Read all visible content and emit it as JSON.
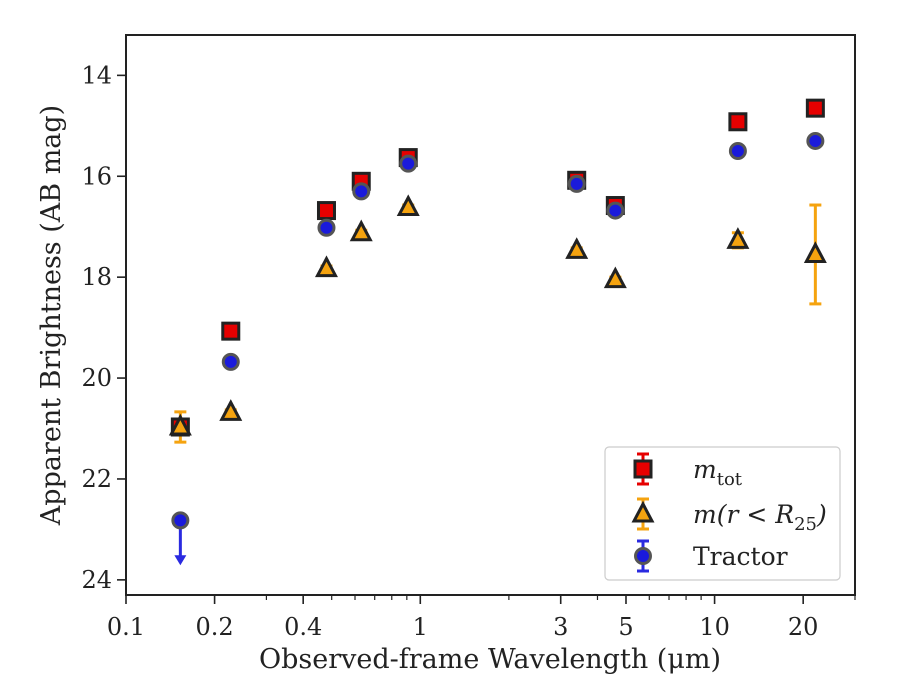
{
  "chart_data": {
    "type": "scatter",
    "xlabel": "Observed-frame Wavelength (μm)",
    "ylabel": "Apparent Brightness (AB mag)",
    "xscale": "log",
    "xlim": [
      0.1,
      30
    ],
    "ylim": [
      24.3,
      13.2
    ],
    "y_inverted": true,
    "xticks": [
      {
        "value": 0.1,
        "label": "0.1"
      },
      {
        "value": 0.2,
        "label": "0.2"
      },
      {
        "value": 0.4,
        "label": "0.4"
      },
      {
        "value": 1,
        "label": "1"
      },
      {
        "value": 3,
        "label": "3"
      },
      {
        "value": 5,
        "label": "5"
      },
      {
        "value": 10,
        "label": "10"
      },
      {
        "value": 20,
        "label": "20"
      }
    ],
    "yticks": [
      {
        "value": 14,
        "label": "14"
      },
      {
        "value": 16,
        "label": "16"
      },
      {
        "value": 18,
        "label": "18"
      },
      {
        "value": 20,
        "label": "20"
      },
      {
        "value": 22,
        "label": "22"
      },
      {
        "value": 24,
        "label": "24"
      }
    ],
    "grid": false,
    "legend_position": "lower-right",
    "series": [
      {
        "name": "m_tot",
        "legend_label": "m",
        "legend_sub": "tot",
        "marker": "square",
        "fill": "#e60000",
        "err_color": "#e60000",
        "points": [
          {
            "x": 0.153,
            "y": 20.97,
            "yerr": 0.08
          },
          {
            "x": 0.227,
            "y": 19.07,
            "yerr": 0.05
          },
          {
            "x": 0.48,
            "y": 16.68,
            "yerr": 0.05
          },
          {
            "x": 0.63,
            "y": 16.1,
            "yerr": 0.05
          },
          {
            "x": 0.91,
            "y": 15.63,
            "yerr": 0.05
          },
          {
            "x": 3.4,
            "y": 16.08,
            "yerr": 0.05
          },
          {
            "x": 4.6,
            "y": 16.58,
            "yerr": 0.05
          },
          {
            "x": 12.0,
            "y": 14.92,
            "yerr": 0.05
          },
          {
            "x": 22.0,
            "y": 14.65,
            "yerr": 0.05
          }
        ]
      },
      {
        "name": "m(r < R_25)",
        "legend_label": "m(r < R",
        "legend_sub": "25",
        "legend_suffix": ")",
        "marker": "triangle",
        "fill": "#f5a30f",
        "err_color": "#f5a30f",
        "points": [
          {
            "x": 0.153,
            "y": 20.97,
            "yerr": 0.3
          },
          {
            "x": 0.227,
            "y": 20.68,
            "yerr": 0.05
          },
          {
            "x": 0.48,
            "y": 17.83,
            "yerr": 0.05
          },
          {
            "x": 0.63,
            "y": 17.12,
            "yerr": 0.05
          },
          {
            "x": 0.91,
            "y": 16.62,
            "yerr": 0.05
          },
          {
            "x": 3.4,
            "y": 17.47,
            "yerr": 0.05
          },
          {
            "x": 4.6,
            "y": 18.05,
            "yerr": 0.05
          },
          {
            "x": 12.0,
            "y": 17.27,
            "yerr": 0.15
          },
          {
            "x": 22.0,
            "y": 17.55,
            "yerr": 0.98
          }
        ]
      },
      {
        "name": "Tractor",
        "legend_label": "Tractor",
        "marker": "circle",
        "fill": "#1a1adb",
        "err_color": "#2a2ae0",
        "points": [
          {
            "x": 0.153,
            "y": 22.82,
            "upper_limit": true
          },
          {
            "x": 0.227,
            "y": 19.68,
            "yerr": 0.05
          },
          {
            "x": 0.48,
            "y": 17.02,
            "yerr": 0.05
          },
          {
            "x": 0.63,
            "y": 16.3,
            "yerr": 0.05
          },
          {
            "x": 0.91,
            "y": 15.75,
            "yerr": 0.05
          },
          {
            "x": 3.4,
            "y": 16.15,
            "yerr": 0.05
          },
          {
            "x": 4.6,
            "y": 16.68,
            "yerr": 0.05
          },
          {
            "x": 12.0,
            "y": 15.5,
            "yerr": 0.05
          },
          {
            "x": 22.0,
            "y": 15.3,
            "yerr": 0.05
          }
        ]
      }
    ]
  }
}
